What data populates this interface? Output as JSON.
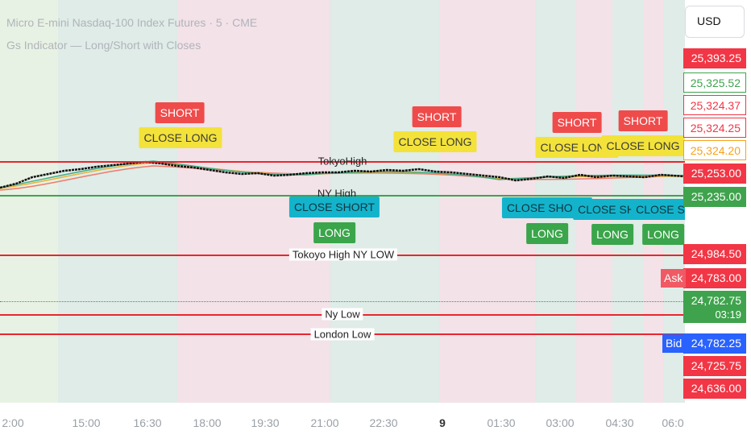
{
  "header": {
    "symbol_line": "Micro E-mini Nasdaq-100 Index Futures · 5 · CME",
    "indicator_line": "Gs Indicator — Long/Short with Closes"
  },
  "currency_button": "USD",
  "levels": {
    "tokyo_high": "TokyoHigh",
    "ny_high": "NY High",
    "tokyo_high_ny_low": "Tokoyo High NY LOW",
    "ny_low": "Ny Low",
    "london_low": "London Low"
  },
  "signals": {
    "short": "SHORT",
    "close_long": "CLOSE LONG",
    "close_short": "CLOSE SHORT",
    "close_short_trunc_a": "CLOSE SHO",
    "close_short_trunc_b": "CLOSE SHO",
    "long": "LONG"
  },
  "price_labels": [
    "25,393.25",
    "25,325.52",
    "25,324.37",
    "25,324.25",
    "25,324.20",
    "25,253.00",
    "25,235.00",
    "24,984.50",
    "24,783.00",
    "24,782.75",
    "03:19",
    "24,782.25",
    "24,725.75",
    "24,636.00"
  ],
  "side_tags": {
    "ask": "Ask",
    "bid": "Bid"
  },
  "time_axis": [
    "2:00",
    "15:00",
    "16:30",
    "18:00",
    "19:30",
    "21:00",
    "22:30",
    "9",
    "01:30",
    "03:00",
    "04:30",
    "06:0"
  ],
  "colors": {
    "session_green": "#dfece7",
    "session_pink": "#f3e2e8",
    "level_red": "#e8262f",
    "level_green": "#3fa34d",
    "short_tag": "#ef4b4b",
    "close_long_tag": "#f3e23a",
    "close_short_tag": "#14b3cc",
    "long_tag": "#3aa54a"
  }
}
